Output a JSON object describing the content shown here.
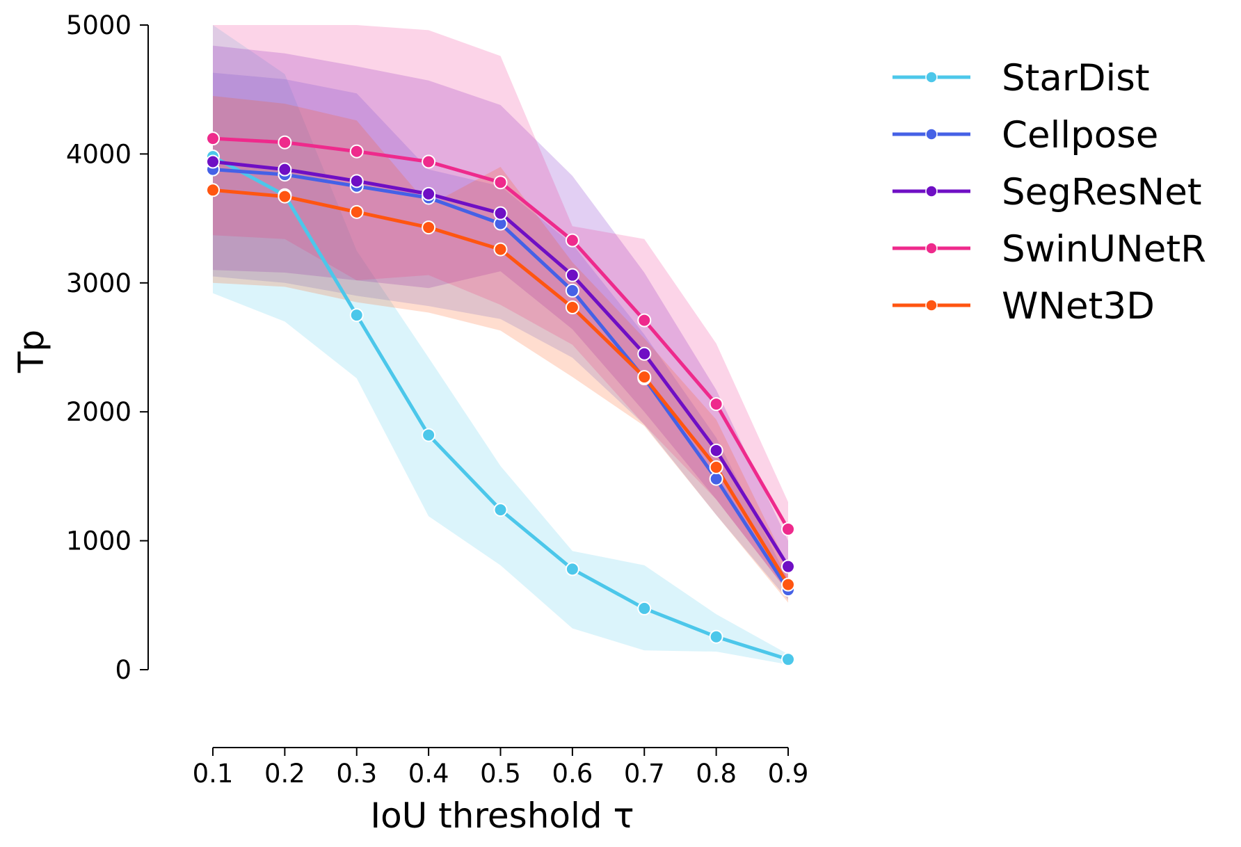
{
  "chart_data": {
    "type": "line",
    "xlabel": "IoU threshold τ",
    "ylabel": "Tp",
    "x": [
      0.1,
      0.2,
      0.3,
      0.4,
      0.5,
      0.6,
      0.7,
      0.8,
      0.9
    ],
    "x_tick_labels": [
      "0.1",
      "0.2",
      "0.3",
      "0.4",
      "0.5",
      "0.6",
      "0.7",
      "0.8",
      "0.9"
    ],
    "y_ticks": [
      0,
      1000,
      2000,
      3000,
      4000,
      5000
    ],
    "y_tick_labels": [
      "0",
      "1000",
      "2000",
      "3000",
      "4000",
      "5000"
    ],
    "ylim": [
      -600,
      5000
    ],
    "xlim": [
      0.1,
      0.9
    ],
    "grid": false,
    "legend_position": "outside-right",
    "series": [
      {
        "name": "StarDist",
        "color": "#4cc7ea",
        "values": [
          3980,
          3680,
          2750,
          1820,
          1240,
          780,
          475,
          255,
          80
        ],
        "lower": [
          2920,
          2700,
          2260,
          1190,
          810,
          320,
          150,
          140,
          40
        ],
        "upper": [
          5000,
          4620,
          3250,
          2420,
          1580,
          920,
          810,
          430,
          120
        ]
      },
      {
        "name": "Cellpose",
        "color": "#4561e6",
        "values": [
          3880,
          3840,
          3750,
          3660,
          3460,
          2940,
          2260,
          1480,
          620
        ],
        "lower": [
          3050,
          3000,
          2900,
          2820,
          2720,
          2420,
          1900,
          1200,
          540
        ],
        "upper": [
          4630,
          4580,
          4470,
          3880,
          3750,
          3300,
          2600,
          1800,
          700
        ]
      },
      {
        "name": "SegResNet",
        "color": "#6f0fc4",
        "values": [
          3940,
          3880,
          3790,
          3690,
          3540,
          3060,
          2450,
          1700,
          800
        ],
        "lower": [
          3100,
          3080,
          3020,
          2960,
          3090,
          2640,
          2000,
          1320,
          600
        ],
        "upper": [
          4840,
          4780,
          4680,
          4570,
          4380,
          3830,
          3080,
          2170,
          1000
        ]
      },
      {
        "name": "SwinUNetR",
        "color": "#ee2a8c",
        "values": [
          4120,
          4090,
          4020,
          3940,
          3780,
          3330,
          2710,
          2060,
          1090
        ],
        "lower": [
          3370,
          3340,
          3020,
          3060,
          2830,
          2520,
          1900,
          1320,
          600
        ],
        "upper": [
          5000,
          5000,
          5000,
          4960,
          4760,
          3440,
          3340,
          2530,
          1300
        ]
      },
      {
        "name": "WNet3D",
        "color": "#ff5511",
        "values": [
          3720,
          3670,
          3550,
          3430,
          3260,
          2810,
          2270,
          1570,
          660
        ],
        "lower": [
          3000,
          2970,
          2850,
          2770,
          2630,
          2270,
          1890,
          1200,
          520
        ],
        "upper": [
          4450,
          4390,
          4260,
          3600,
          3900,
          3160,
          2570,
          1940,
          800
        ]
      }
    ]
  }
}
